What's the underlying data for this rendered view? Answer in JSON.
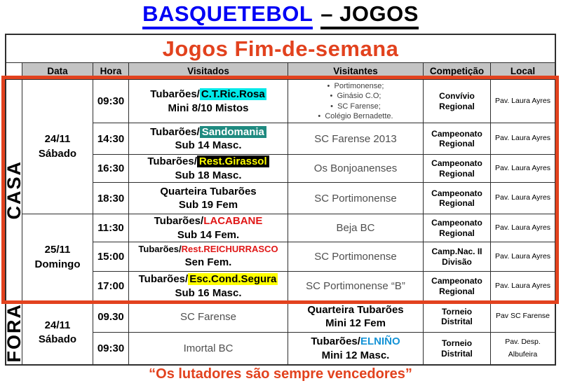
{
  "title": {
    "part1": "BASQUETEBOL",
    "part2": "– JOGOS"
  },
  "banner": "Jogos Fim-de-semana",
  "header": {
    "data": "Data",
    "hora": "Hora",
    "visitados": "Visitados",
    "visitantes": "Visitantes",
    "competicao": "Competição",
    "local": "Local"
  },
  "sections": {
    "casa": "CASA",
    "fora": "FORA"
  },
  "dates": {
    "casa_sat": {
      "line1": "24/11",
      "line2": "Sábado"
    },
    "casa_sun": {
      "line1": "25/11",
      "line2": "Domingo"
    },
    "fora_sat": {
      "line1": "24/11",
      "line2": "Sábado"
    }
  },
  "casa_rows": [
    {
      "hora": "09:30",
      "prefix": "Tubarões/",
      "team": "C.T.Ric.Rosa",
      "cat": "Mini 8/10 Mistos",
      "visitantes_list": [
        "Portimonense;",
        "Ginásio C.O;",
        "SC Farense;",
        "Colégio Bernadette."
      ],
      "competicao": "Convívio Regional",
      "local": "Pav. Laura Ayres"
    },
    {
      "hora": "14:30",
      "prefix": "Tubarões/",
      "team": "Sandomania",
      "cat": "Sub 14 Masc.",
      "visitantes": "SC Farense 2013",
      "competicao": "Campeonato Regional",
      "local": "Pav. Laura Ayres"
    },
    {
      "hora": "16:30",
      "prefix": "Tubarões/",
      "team": "Rest.Girassol",
      "cat": "Sub 18 Masc.",
      "visitantes": "Os Bonjoanenses",
      "competicao": "Campeonato Regional",
      "local": "Pav. Laura Ayres"
    },
    {
      "hora": "18:30",
      "line1": "Quarteira Tubarões",
      "cat": "Sub 19 Fem",
      "visitantes": "SC Portimonense",
      "competicao": "Campeonato Regional",
      "local": "Pav. Laura Ayres"
    },
    {
      "hora": "11:30",
      "prefix": "Tubarões/",
      "team": "LACABANE",
      "cat": "Sub 14 Fem.",
      "visitantes": "Beja BC",
      "competicao": "Campeonato Regional",
      "local": "Pav. Laura Ayres"
    },
    {
      "hora": "15:00",
      "prefix": "Tubarões/",
      "team": "Rest.REICHURRASCO",
      "cat": "Sen Fem.",
      "visitantes": "SC Portimonense",
      "competicao": "Camp.Nac. II Divisão",
      "local": "Pav. Laura Ayres"
    },
    {
      "hora": "17:00",
      "prefix": "Tubarões/",
      "team": "Esc.Cond.Segura",
      "cat": "Sub 16 Masc.",
      "visitantes": "SC Portimonense “B”",
      "competicao": "Campeonato Regional",
      "local": "Pav. Laura Ayres"
    }
  ],
  "fora_rows": [
    {
      "hora": "09.30",
      "visitados": "SC Farense",
      "visitantes_line1": "Quarteira Tubarões",
      "visitantes_line2": "Mini 12 Fem",
      "competicao": "Torneio Distrital",
      "local": "Pav SC Farense"
    },
    {
      "hora": "09:30",
      "visitados": "Imortal BC",
      "prefix": "Tubarões/",
      "team": "ELNIÑO",
      "visitantes_line2": "Mini 12 Masc.",
      "competicao": "Torneio Distrital",
      "local": "Pav. Desp. Albufeira"
    }
  ],
  "quote": "“Os lutadores são sempre vencedores”",
  "colors": {
    "accent_red": "#E2421E",
    "title_blue": "#0000F5",
    "highlight_cyan": "#00E9E9",
    "highlight_teal": "#1F8A80",
    "highlight_yellow": "#FFFF00",
    "highlight_black": "#000000",
    "team_red": "#E01717",
    "team_blue": "#1593D6",
    "header_gray": "#C4C4C4"
  }
}
